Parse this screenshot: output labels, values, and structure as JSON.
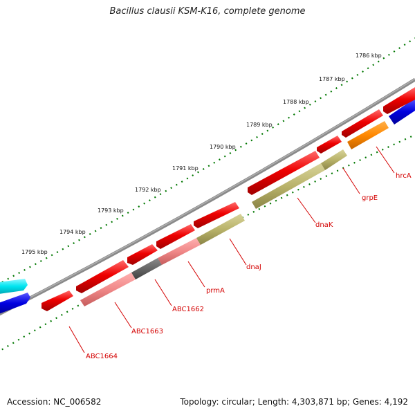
{
  "map": {
    "title": "Bacillus clausii KSM-K16, complete genome",
    "accession": "Accession: NC_006582",
    "summary": "Topology: circular; Length: 4,303,871 bp; Genes: 4,192",
    "kbp_ticks": [
      "1786 kbp",
      "1787 kbp",
      "1788 kbp",
      "1789 kbp",
      "1790 kbp",
      "1791 kbp",
      "1792 kbp",
      "1793 kbp",
      "1794 kbp",
      "1795 kbp"
    ],
    "gene_labels": [
      "hrcA",
      "grpE",
      "dnaK",
      "dnaJ",
      "prmA",
      "ABC1662",
      "ABC1663",
      "ABC1664"
    ],
    "colors": {
      "cds": "#ee0000",
      "gene_olive": "#b9b36a",
      "gene_pink": "#f08888",
      "gene_dark": "#666666",
      "gene_orange": "#ff8800",
      "cyan": "#00e5f0",
      "blue": "#0000e0",
      "backbone": "#808080",
      "ticks": "#007700",
      "label_red": "#d40000"
    }
  }
}
